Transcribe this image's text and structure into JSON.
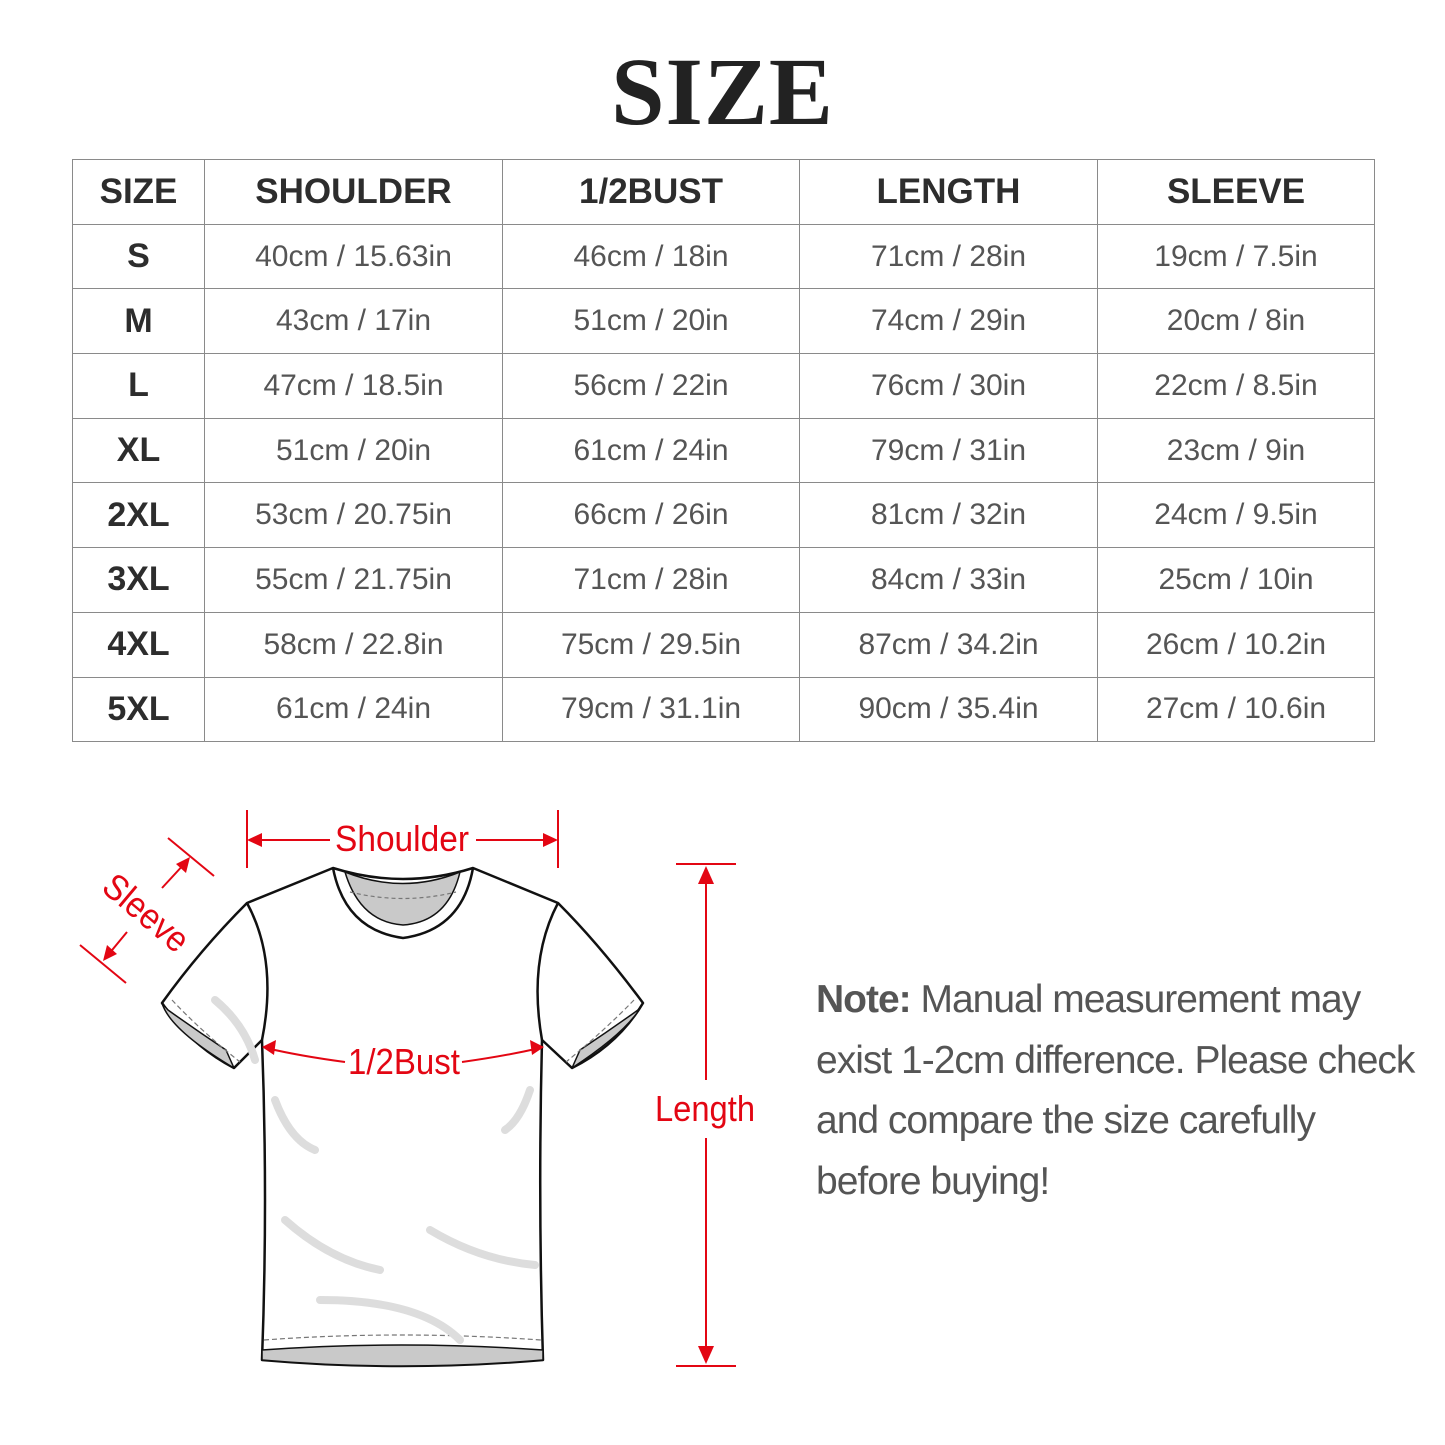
{
  "title": "SIZE",
  "table": {
    "headers": [
      "SIZE",
      "SHOULDER",
      "1/2BUST",
      "LENGTH",
      "SLEEVE"
    ],
    "rows": [
      [
        "S",
        "40cm / 15.63in",
        "46cm / 18in",
        "71cm / 28in",
        "19cm / 7.5in"
      ],
      [
        "M",
        "43cm / 17in",
        "51cm / 20in",
        "74cm / 29in",
        "20cm / 8in"
      ],
      [
        "L",
        "47cm / 18.5in",
        "56cm / 22in",
        "76cm / 30in",
        "22cm / 8.5in"
      ],
      [
        "XL",
        "51cm / 20in",
        "61cm / 24in",
        "79cm / 31in",
        "23cm / 9in"
      ],
      [
        "2XL",
        "53cm / 20.75in",
        "66cm / 26in",
        "81cm / 32in",
        "24cm / 9.5in"
      ],
      [
        "3XL",
        "55cm / 21.75in",
        "71cm / 28in",
        "84cm / 33in",
        "25cm / 10in"
      ],
      [
        "4XL",
        "58cm / 22.8in",
        "75cm / 29.5in",
        "87cm / 34.2in",
        "26cm / 10.2in"
      ],
      [
        "5XL",
        "61cm / 24in",
        "79cm / 31.1in",
        "90cm / 35.4in",
        "27cm / 10.6in"
      ]
    ]
  },
  "diagram": {
    "shoulder_label": "Shoulder",
    "sleeve_label": "Sleeve",
    "bust_label": "1/2Bust",
    "length_label": "Length",
    "accent_color": "#e30613"
  },
  "note": {
    "label": "Note:",
    "text": " Manual measurement may exist 1-2cm difference. Please check and compare the size carefully before buying!"
  }
}
